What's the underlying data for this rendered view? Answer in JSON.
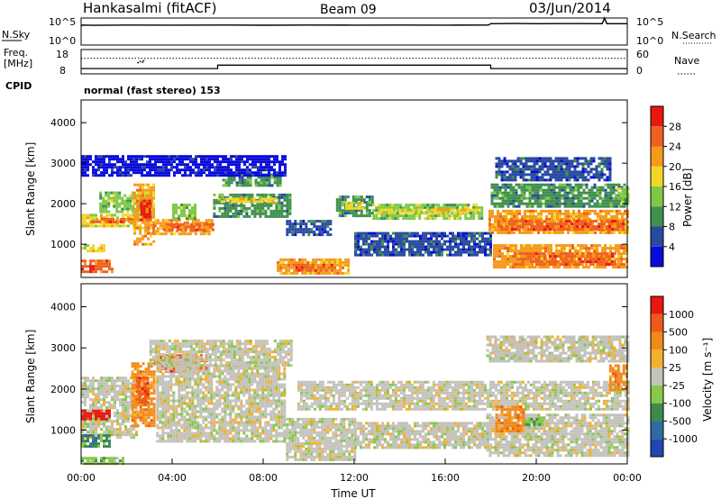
{
  "header": {
    "station": "Hankasalmi (fitACF)",
    "beam": "Beam 09",
    "date": "03/Jun/2014"
  },
  "chart_data": [
    {
      "type": "line",
      "panel": "noise",
      "left_label": "N.Sky",
      "right_label": "N.Search",
      "left_ticks": [
        "10^5",
        "10^0"
      ],
      "right_ticks": [
        "10^5",
        "10^0"
      ],
      "series": [
        {
          "x": [
            0,
            0.05,
            0.5,
            2,
            4,
            6,
            8,
            10,
            12,
            14,
            16,
            17.9,
            18.0,
            19,
            20,
            21,
            22,
            22.9,
            23.0,
            23.1,
            24
          ],
          "y": [
            3000,
            5000,
            4500,
            5000,
            4800,
            5000,
            4700,
            5100,
            4900,
            5000,
            4900,
            5000,
            9000,
            9500,
            9000,
            9200,
            9300,
            9000,
            100000,
            9000,
            9000
          ]
        }
      ]
    },
    {
      "type": "line",
      "panel": "frequency",
      "left_label": "Freq.",
      "left_unit": "[MHz]",
      "right_label": "Nave",
      "left_ticks": [
        "18",
        "8"
      ],
      "right_ticks": [
        "60",
        "0"
      ],
      "ylim_freq": [
        8,
        18
      ],
      "ylim_nave": [
        0,
        60
      ],
      "freq": {
        "x": [
          0,
          6.0,
          6.0,
          18.0,
          18.0,
          24
        ],
        "y": [
          10.2,
          10.2,
          11.6,
          11.6,
          10.2,
          10.2
        ]
      },
      "nave_level": 14.4,
      "nave_dots": [
        {
          "x": 2.5,
          "y": 12.6
        },
        {
          "x": 2.6,
          "y": 13.1
        },
        {
          "x": 2.7,
          "y": 12.8
        },
        {
          "x": 2.75,
          "y": 13.4
        }
      ]
    },
    {
      "type": "heatmap",
      "panel": "power",
      "cpid": "CPID",
      "cpid_value": "normal (fast stereo) 153",
      "ylabel": "Slant Range [km]",
      "ylim": [
        180,
        4560
      ],
      "xlim": [
        0,
        24
      ],
      "yticks": [
        "4000",
        "3000",
        "2000",
        "1000"
      ],
      "colorbar_label": "Power [dB]",
      "colorbar_ticks": [
        "28",
        "24",
        "20",
        "16",
        "12",
        "8",
        "4"
      ],
      "colors": [
        "#0a0adc",
        "#2a4aa0",
        "#3f8f4f",
        "#7ec846",
        "#f2d72a",
        "#f59a1a",
        "#f06020",
        "#e81810"
      ],
      "regions": [
        {
          "t0": 0.0,
          "t1": 1.4,
          "r0": 300,
          "r1": 620,
          "level": 6
        },
        {
          "t0": 0.0,
          "t1": 1.0,
          "r0": 850,
          "r1": 1000,
          "level": 4
        },
        {
          "t0": 0.0,
          "t1": 2.5,
          "r0": 1450,
          "r1": 1750,
          "level": 4
        },
        {
          "t0": 0.4,
          "t1": 2.3,
          "r0": 1550,
          "r1": 1650,
          "level": 6
        },
        {
          "t0": 0.8,
          "t1": 3.1,
          "r0": 1800,
          "r1": 2300,
          "level": 3
        },
        {
          "t0": 2.3,
          "t1": 3.2,
          "r0": 1000,
          "r1": 2500,
          "level": 5
        },
        {
          "t0": 2.6,
          "t1": 3.0,
          "r0": 1600,
          "r1": 2100,
          "level": 7
        },
        {
          "t0": 3.2,
          "t1": 5.8,
          "r0": 1280,
          "r1": 1620,
          "level": 5
        },
        {
          "t0": 3.6,
          "t1": 5.8,
          "r0": 1380,
          "r1": 1520,
          "level": 6
        },
        {
          "t0": 4.0,
          "t1": 5.0,
          "r0": 1600,
          "r1": 2000,
          "level": 3
        },
        {
          "t0": 5.8,
          "t1": 9.2,
          "r0": 1650,
          "r1": 2250,
          "level": 2
        },
        {
          "t0": 6.0,
          "t1": 8.6,
          "r0": 2050,
          "r1": 2150,
          "level": 4
        },
        {
          "t0": 6.2,
          "t1": 8.8,
          "r0": 2450,
          "r1": 2750,
          "level": 2
        },
        {
          "t0": 8.6,
          "t1": 11.8,
          "r0": 250,
          "r1": 650,
          "level": 5
        },
        {
          "t0": 9.3,
          "t1": 11.0,
          "r0": 380,
          "r1": 520,
          "level": 6
        },
        {
          "t0": 9.0,
          "t1": 11.0,
          "r0": 1250,
          "r1": 1600,
          "level": 1
        },
        {
          "t0": 11.2,
          "t1": 12.8,
          "r0": 1700,
          "r1": 2200,
          "level": 2
        },
        {
          "t0": 11.6,
          "t1": 12.4,
          "r0": 1850,
          "r1": 2050,
          "level": 4
        },
        {
          "t0": 12.8,
          "t1": 17.6,
          "r0": 1600,
          "r1": 2000,
          "level": 3
        },
        {
          "t0": 13.0,
          "t1": 17.4,
          "r0": 1750,
          "r1": 1880,
          "level": 4
        },
        {
          "t0": 12.0,
          "t1": 18.0,
          "r0": 700,
          "r1": 1300,
          "level": 1
        },
        {
          "t0": 17.9,
          "t1": 24.0,
          "r0": 1250,
          "r1": 1850,
          "level": 5
        },
        {
          "t0": 18.3,
          "t1": 23.8,
          "r0": 1380,
          "r1": 1600,
          "level": 6
        },
        {
          "t0": 18.1,
          "t1": 24.0,
          "r0": 420,
          "r1": 1000,
          "level": 5
        },
        {
          "t0": 19.0,
          "t1": 23.5,
          "r0": 500,
          "r1": 800,
          "level": 6
        },
        {
          "t0": 18.0,
          "t1": 24.0,
          "r0": 1900,
          "r1": 2500,
          "level": 2
        },
        {
          "t0": 18.2,
          "t1": 23.2,
          "r0": 2600,
          "r1": 3150,
          "level": 1
        },
        {
          "t0": 0.0,
          "t1": 9.0,
          "r0": 2700,
          "r1": 3200,
          "level": 0
        },
        {
          "t0": 23.5,
          "t1": 24.0,
          "r0": 2000,
          "r1": 2400,
          "level": 3
        }
      ]
    },
    {
      "type": "heatmap",
      "panel": "velocity",
      "ylabel": "Slant Range [km]",
      "xlabel": "Time UT",
      "ylim": [
        180,
        4560
      ],
      "xlim": [
        0,
        24
      ],
      "yticks": [
        "4000",
        "3000",
        "2000",
        "1000"
      ],
      "xticks": [
        "00:00",
        "04:00",
        "08:00",
        "12:00",
        "16:00",
        "20:00",
        "00:00"
      ],
      "colorbar_label": "Velocity [m s⁻¹]",
      "colorbar_ticks": [
        "1000",
        "500",
        "100",
        "25",
        "-25",
        "-100",
        "-500",
        "-1000"
      ],
      "colors": [
        "#2446b0",
        "#2f6aa0",
        "#3e8a4c",
        "#88c84a",
        "#c4c2bc",
        "#f3b02a",
        "#f28a1a",
        "#f05a18",
        "#e81810"
      ],
      "regions": [
        {
          "t0": 0.0,
          "t1": 2.4,
          "r0": 800,
          "r1": 2300,
          "level": 4
        },
        {
          "t0": 0.0,
          "t1": 1.8,
          "r0": 200,
          "r1": 350,
          "level": 3
        },
        {
          "t0": 0.0,
          "t1": 1.2,
          "r0": 600,
          "r1": 900,
          "level": 2
        },
        {
          "t0": 2.2,
          "t1": 3.2,
          "r0": 1100,
          "r1": 2650,
          "level": 6
        },
        {
          "t0": 2.4,
          "t1": 2.9,
          "r0": 1600,
          "r1": 2300,
          "level": 7
        },
        {
          "t0": 3.2,
          "t1": 5.5,
          "r0": 2450,
          "r1": 2850,
          "level": 7
        },
        {
          "t0": 3.3,
          "t1": 9.0,
          "r0": 700,
          "r1": 2600,
          "level": 4
        },
        {
          "t0": 3.0,
          "t1": 9.2,
          "r0": 2600,
          "r1": 3200,
          "level": 4
        },
        {
          "t0": 9.0,
          "t1": 12.0,
          "r0": 300,
          "r1": 1300,
          "level": 4
        },
        {
          "t0": 9.5,
          "t1": 24.0,
          "r0": 1500,
          "r1": 2200,
          "level": 4
        },
        {
          "t0": 12.0,
          "t1": 18.0,
          "r0": 600,
          "r1": 1200,
          "level": 4
        },
        {
          "t0": 17.8,
          "t1": 24.0,
          "r0": 400,
          "r1": 1400,
          "level": 4
        },
        {
          "t0": 18.2,
          "t1": 19.5,
          "r0": 1000,
          "r1": 1600,
          "level": 6
        },
        {
          "t0": 19.5,
          "t1": 20.3,
          "r0": 1050,
          "r1": 1300,
          "level": 3
        },
        {
          "t0": 23.2,
          "t1": 24.0,
          "r0": 2000,
          "r1": 2600,
          "level": 6
        },
        {
          "t0": 17.8,
          "t1": 24.0,
          "r0": 2700,
          "r1": 3300,
          "level": 4
        },
        {
          "t0": 0.0,
          "t1": 1.2,
          "r0": 1300,
          "r1": 1500,
          "level": 8
        }
      ]
    }
  ]
}
